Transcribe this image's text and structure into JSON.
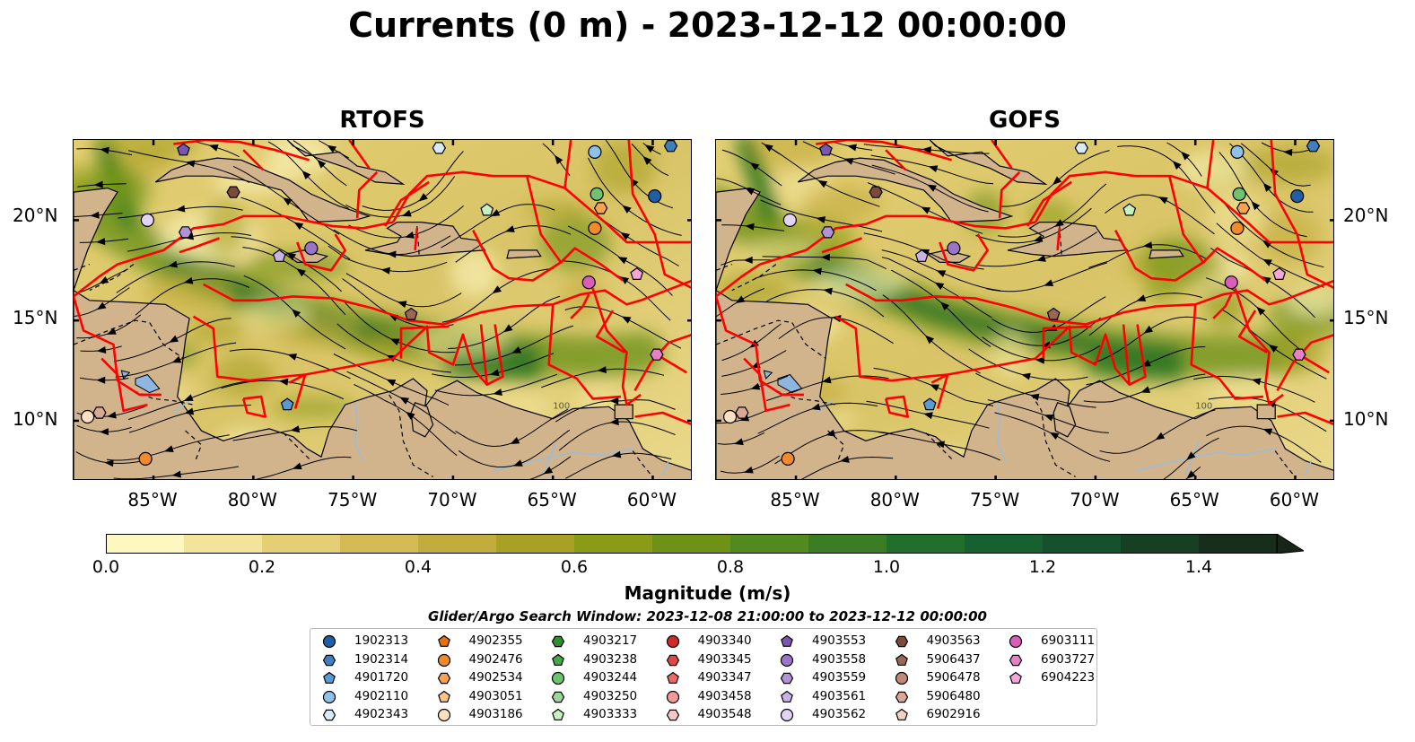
{
  "title": "Currents (0 m) - 2023-12-12 00:00:00",
  "panels": [
    {
      "title": "RTOFS"
    },
    {
      "title": "GOFS"
    }
  ],
  "axes": {
    "lon_ticks": [
      "85°W",
      "80°W",
      "75°W",
      "70°W",
      "65°W",
      "60°W"
    ],
    "lat_ticks": [
      "20°N",
      "15°N",
      "10°N"
    ],
    "lon_range": [
      -89.0,
      -58.0
    ],
    "lat_range": [
      7.0,
      24.0
    ]
  },
  "colorbar": {
    "label": "Magnitude (m/s)",
    "ticks": [
      "0.0",
      "0.2",
      "0.4",
      "0.6",
      "0.8",
      "1.0",
      "1.2",
      "1.4"
    ],
    "range": [
      0.0,
      1.5
    ],
    "extend": "max",
    "colors": [
      "#fdf7c0",
      "#f2e49a",
      "#e4cf74",
      "#d4bb55",
      "#c3ac3e",
      "#a8a125",
      "#8a9b18",
      "#6e9218",
      "#528a1f",
      "#3a7d24",
      "#226f2c",
      "#17602f",
      "#15512c",
      "#173f24",
      "#172e1c",
      "#16241a"
    ]
  },
  "search_window": "Glider/Argo Search Window: 2023-12-08 21:00:00 to 2023-12-12 00:00:00",
  "legend": [
    {
      "id": "1902313",
      "marker": "circle",
      "color": "#1f5fa8"
    },
    {
      "id": "1902314",
      "marker": "hexagon",
      "color": "#3f7fc0"
    },
    {
      "id": "4901720",
      "marker": "pentagon",
      "color": "#5a9ad2"
    },
    {
      "id": "4902110",
      "marker": "circle",
      "color": "#8ec2ea"
    },
    {
      "id": "4902343",
      "marker": "hexagon",
      "color": "#d6eaf8"
    },
    {
      "id": "4902355",
      "marker": "pentagon",
      "color": "#e4700f"
    },
    {
      "id": "4902476",
      "marker": "circle",
      "color": "#f08a2c"
    },
    {
      "id": "4902534",
      "marker": "hexagon",
      "color": "#f6a454"
    },
    {
      "id": "4903051",
      "marker": "pentagon",
      "color": "#fbc48a"
    },
    {
      "id": "4903186",
      "marker": "circle",
      "color": "#fde0c2"
    },
    {
      "id": "4903217",
      "marker": "hexagon",
      "color": "#2f8f2f"
    },
    {
      "id": "4903238",
      "marker": "pentagon",
      "color": "#45a845"
    },
    {
      "id": "4903244",
      "marker": "circle",
      "color": "#6ec46e"
    },
    {
      "id": "4903250",
      "marker": "hexagon",
      "color": "#9ad89a"
    },
    {
      "id": "4903333",
      "marker": "pentagon",
      "color": "#c8f0c0"
    },
    {
      "id": "4903340",
      "marker": "circle",
      "color": "#cf2a2a"
    },
    {
      "id": "4903345",
      "marker": "hexagon",
      "color": "#e04848"
    },
    {
      "id": "4903347",
      "marker": "pentagon",
      "color": "#ea6a6a"
    },
    {
      "id": "4903458",
      "marker": "circle",
      "color": "#f29a9a"
    },
    {
      "id": "4903548",
      "marker": "hexagon",
      "color": "#f8c8c8"
    },
    {
      "id": "4903553",
      "marker": "pentagon",
      "color": "#7c55b0"
    },
    {
      "id": "4903558",
      "marker": "circle",
      "color": "#9a74c8"
    },
    {
      "id": "4903559",
      "marker": "hexagon",
      "color": "#b392d8"
    },
    {
      "id": "4903561",
      "marker": "pentagon",
      "color": "#c9b2e6"
    },
    {
      "id": "4903562",
      "marker": "circle",
      "color": "#e2d4f4"
    },
    {
      "id": "4903563",
      "marker": "hexagon",
      "color": "#7a4a3a"
    },
    {
      "id": "5906437",
      "marker": "pentagon",
      "color": "#9a6656"
    },
    {
      "id": "5906478",
      "marker": "circle",
      "color": "#c08878"
    },
    {
      "id": "5906480",
      "marker": "hexagon",
      "color": "#dba896"
    },
    {
      "id": "6902916",
      "marker": "pentagon",
      "color": "#f6d0c4"
    },
    {
      "id": "6903111",
      "marker": "circle",
      "color": "#d85fb8"
    },
    {
      "id": "6903727",
      "marker": "hexagon",
      "color": "#e680c8"
    },
    {
      "id": "6904223",
      "marker": "pentagon",
      "color": "#f2a6dc"
    }
  ],
  "floats": [
    {
      "id": "4903553",
      "lon": -83.5,
      "lat": 23.5
    },
    {
      "id": "4902343",
      "lon": -70.7,
      "lat": 23.6
    },
    {
      "id": "4902110",
      "lon": -62.9,
      "lat": 23.4
    },
    {
      "id": "1902314",
      "lon": -59.1,
      "lat": 23.7
    },
    {
      "id": "4903563",
      "lon": -81.0,
      "lat": 21.4
    },
    {
      "id": "4903244",
      "lon": -62.8,
      "lat": 21.3
    },
    {
      "id": "1902313",
      "lon": -59.9,
      "lat": 21.2
    },
    {
      "id": "4902534",
      "lon": -62.6,
      "lat": 20.6
    },
    {
      "id": "4903333",
      "lon": -68.3,
      "lat": 20.5
    },
    {
      "id": "4903562",
      "lon": -85.3,
      "lat": 20.0
    },
    {
      "id": "4903559",
      "lon": -83.4,
      "lat": 19.4
    },
    {
      "id": "4902476",
      "lon": -62.9,
      "lat": 19.6
    },
    {
      "id": "4903558",
      "lon": -77.1,
      "lat": 18.6
    },
    {
      "id": "4903561",
      "lon": -78.7,
      "lat": 18.2
    },
    {
      "id": "6904223",
      "lon": -60.8,
      "lat": 17.3
    },
    {
      "id": "6903111",
      "lon": -63.2,
      "lat": 16.9
    },
    {
      "id": "5906437",
      "lon": -72.1,
      "lat": 15.3
    },
    {
      "id": "6903727",
      "lon": -59.8,
      "lat": 13.3
    },
    {
      "id": "4901720",
      "lon": -78.3,
      "lat": 10.8
    },
    {
      "id": "5906480",
      "lon": -87.7,
      "lat": 10.4
    },
    {
      "id": "4903186",
      "lon": -88.3,
      "lat": 10.2
    },
    {
      "id": "4902476",
      "lon": -85.4,
      "lat": 8.1
    }
  ],
  "contour_label": "100"
}
